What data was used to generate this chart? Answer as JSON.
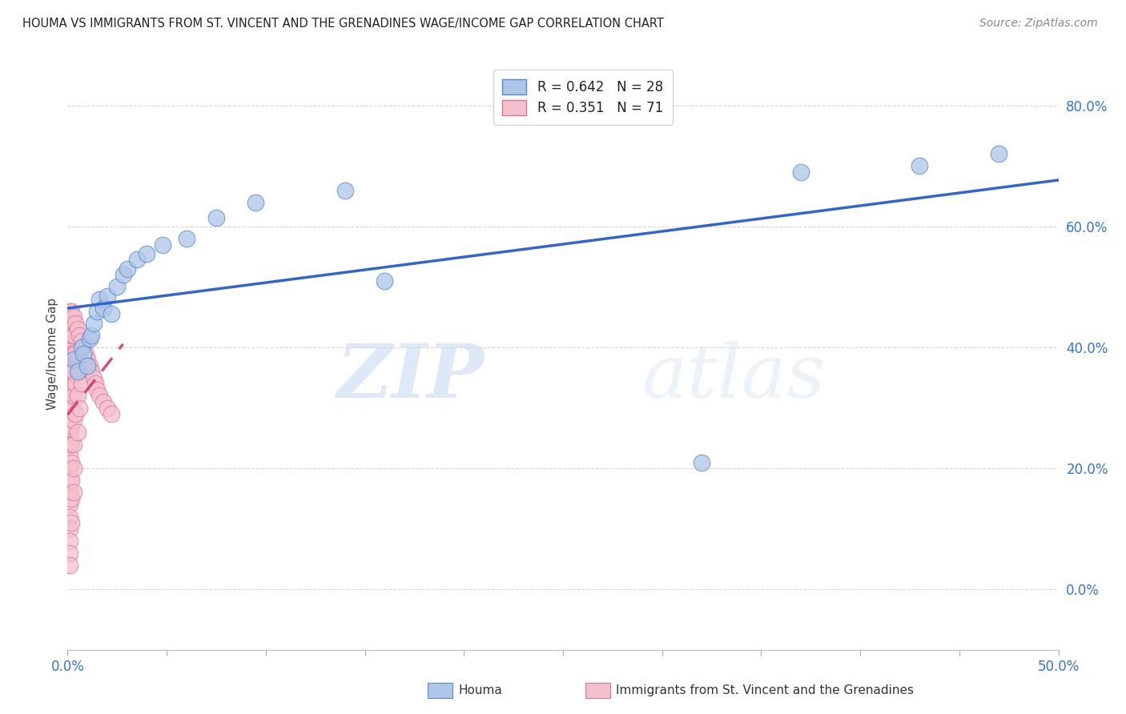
{
  "title": "HOUMA VS IMMIGRANTS FROM ST. VINCENT AND THE GRENADINES WAGE/INCOME GAP CORRELATION CHART",
  "source": "Source: ZipAtlas.com",
  "ylabel": "Wage/Income Gap",
  "xlim": [
    0.0,
    0.5
  ],
  "ylim": [
    -0.1,
    0.88
  ],
  "xtick_positions": [
    0.0,
    0.05,
    0.1,
    0.15,
    0.2,
    0.25,
    0.3,
    0.35,
    0.4,
    0.45,
    0.5
  ],
  "xtick_labels": [
    "0.0%",
    "",
    "",
    "",
    "",
    "",
    "",
    "",
    "",
    "",
    "50.0%"
  ],
  "ytick_positions": [
    0.0,
    0.2,
    0.4,
    0.6,
    0.8
  ],
  "ytick_labels": [
    "0.0%",
    "20.0%",
    "40.0%",
    "60.0%",
    "80.0%"
  ],
  "houma_R": 0.642,
  "houma_N": 28,
  "immigrants_R": 0.351,
  "immigrants_N": 71,
  "houma_color": "#aec6e8",
  "houma_edge_color": "#5588cc",
  "houma_line_color": "#3366cc",
  "immigrants_color": "#f5c0ce",
  "immigrants_edge_color": "#dd7799",
  "immigrants_line_color": "#cc3366",
  "watermark_zip": "ZIP",
  "watermark_atlas": "atlas",
  "legend_label_houma": "Houma",
  "legend_label_immigrants": "Immigrants from St. Vincent and the Grenadines",
  "houma_x": [
    0.003,
    0.005,
    0.007,
    0.008,
    0.01,
    0.011,
    0.012,
    0.013,
    0.015,
    0.016,
    0.018,
    0.02,
    0.022,
    0.025,
    0.028,
    0.03,
    0.035,
    0.04,
    0.048,
    0.06,
    0.075,
    0.095,
    0.14,
    0.16,
    0.32,
    0.37,
    0.43,
    0.47
  ],
  "houma_y": [
    0.38,
    0.36,
    0.4,
    0.39,
    0.37,
    0.415,
    0.42,
    0.44,
    0.46,
    0.48,
    0.465,
    0.485,
    0.455,
    0.5,
    0.52,
    0.53,
    0.545,
    0.555,
    0.57,
    0.58,
    0.615,
    0.64,
    0.66,
    0.51,
    0.21,
    0.69,
    0.7,
    0.72
  ],
  "immigrants_x": [
    0.001,
    0.001,
    0.001,
    0.001,
    0.001,
    0.001,
    0.001,
    0.001,
    0.001,
    0.001,
    0.001,
    0.001,
    0.001,
    0.001,
    0.001,
    0.001,
    0.001,
    0.001,
    0.001,
    0.001,
    0.001,
    0.001,
    0.001,
    0.001,
    0.002,
    0.002,
    0.002,
    0.002,
    0.002,
    0.002,
    0.002,
    0.002,
    0.002,
    0.002,
    0.002,
    0.002,
    0.002,
    0.003,
    0.003,
    0.003,
    0.003,
    0.003,
    0.003,
    0.003,
    0.003,
    0.003,
    0.004,
    0.004,
    0.004,
    0.004,
    0.005,
    0.005,
    0.005,
    0.005,
    0.006,
    0.006,
    0.006,
    0.007,
    0.007,
    0.008,
    0.009,
    0.01,
    0.011,
    0.012,
    0.013,
    0.014,
    0.015,
    0.016,
    0.018,
    0.02,
    0.022
  ],
  "immigrants_y": [
    0.46,
    0.445,
    0.43,
    0.415,
    0.4,
    0.385,
    0.37,
    0.355,
    0.34,
    0.32,
    0.3,
    0.28,
    0.26,
    0.24,
    0.22,
    0.2,
    0.18,
    0.16,
    0.14,
    0.12,
    0.1,
    0.08,
    0.06,
    0.04,
    0.46,
    0.44,
    0.42,
    0.39,
    0.36,
    0.33,
    0.3,
    0.27,
    0.24,
    0.21,
    0.18,
    0.15,
    0.11,
    0.45,
    0.42,
    0.39,
    0.36,
    0.32,
    0.28,
    0.24,
    0.2,
    0.16,
    0.44,
    0.39,
    0.34,
    0.29,
    0.43,
    0.38,
    0.32,
    0.26,
    0.42,
    0.36,
    0.3,
    0.41,
    0.34,
    0.4,
    0.39,
    0.38,
    0.37,
    0.36,
    0.35,
    0.34,
    0.33,
    0.32,
    0.31,
    0.3,
    0.29
  ]
}
